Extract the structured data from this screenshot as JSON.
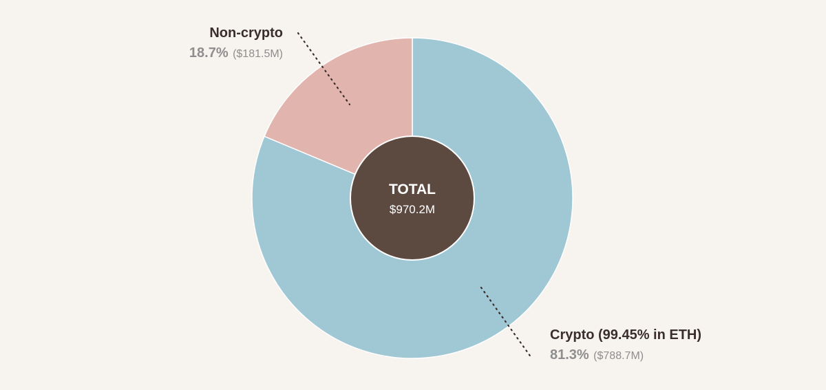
{
  "colors": {
    "background": "#f7f3ee",
    "crypto": "#9fc7d4",
    "non_crypto": "#e2b4ae",
    "center": "#5c4a41",
    "text_dark": "#3a2e2a",
    "text_grey": "#8e8e8e"
  },
  "chart_data": {
    "type": "pie",
    "slices": [
      {
        "name": "Crypto (99.45% in ETH)",
        "share_pct": 81.3,
        "value_label": "($788.7M)",
        "pct_label": "81.3%",
        "color": "#9fc7d4"
      },
      {
        "name": "Non-crypto",
        "share_pct": 18.7,
        "value_label": "($181.5M)",
        "pct_label": "18.7%",
        "color": "#e2b4ae"
      }
    ],
    "center": {
      "title": "TOTAL",
      "value": "$970.2M"
    }
  }
}
